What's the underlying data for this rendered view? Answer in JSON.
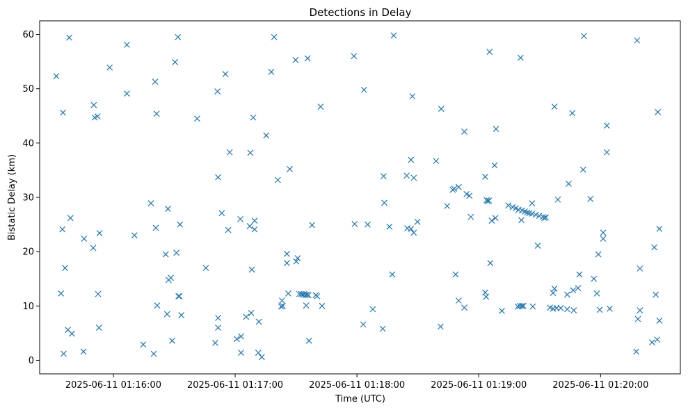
{
  "chart_data": {
    "type": "scatter",
    "title": "Detections in Delay",
    "xlabel": "Time (UTC)",
    "ylabel": "Bistatic Delay (km)",
    "x_ticks": [
      "2025-06-11 01:16:00",
      "2025-06-11 01:17:00",
      "2025-06-11 01:18:00",
      "2025-06-11 01:19:00",
      "2025-06-11 01:20:00"
    ],
    "y_ticks": [
      "0",
      "10",
      "20",
      "30",
      "40",
      "50",
      "60"
    ],
    "xlim": [
      "2025-06-11 01:15:23.7",
      "2025-06-11 01:20:39.3"
    ],
    "ylim": [
      -2.5,
      62.5
    ],
    "marker": "x",
    "color": "#1f77b4",
    "grid": false,
    "points": [
      [
        "01:15:31.9",
        52.3
      ],
      [
        "01:15:34.2",
        12.3
      ],
      [
        "01:15:34.9",
        24.1
      ],
      [
        "01:15:35.2",
        45.6
      ],
      [
        "01:15:35.5",
        1.2
      ],
      [
        "01:15:36.2",
        17.0
      ],
      [
        "01:15:37.6",
        5.6
      ],
      [
        "01:15:38.3",
        59.4
      ],
      [
        "01:15:38.9",
        26.2
      ],
      [
        "01:15:39.6",
        4.9
      ],
      [
        "01:15:45.3",
        1.6
      ],
      [
        "01:15:45.6",
        22.4
      ],
      [
        "01:15:50.1",
        20.7
      ],
      [
        "01:15:50.4",
        47.0
      ],
      [
        "01:15:50.8",
        44.7
      ],
      [
        "01:15:52.2",
        44.9
      ],
      [
        "01:15:52.5",
        12.2
      ],
      [
        "01:15:52.9",
        6.0
      ],
      [
        "01:15:53.2",
        23.4
      ],
      [
        "01:15:58.2",
        53.9
      ],
      [
        "01:16:06.7",
        58.1
      ],
      [
        "01:16:06.7",
        49.1
      ],
      [
        "01:16:10.4",
        23.0
      ],
      [
        "01:16:14.7",
        2.9
      ],
      [
        "01:16:18.5",
        28.9
      ],
      [
        "01:16:19.9",
        1.2
      ],
      [
        "01:16:20.6",
        51.3
      ],
      [
        "01:16:20.9",
        24.4
      ],
      [
        "01:16:21.3",
        45.4
      ],
      [
        "01:16:21.6",
        10.1
      ],
      [
        "01:16:25.8",
        19.5
      ],
      [
        "01:16:26.5",
        8.5
      ],
      [
        "01:16:26.9",
        27.9
      ],
      [
        "01:16:27.2",
        14.8
      ],
      [
        "01:16:28.3",
        15.2
      ],
      [
        "01:16:29.0",
        3.6
      ],
      [
        "01:16:30.4",
        54.9
      ],
      [
        "01:16:31.1",
        19.8
      ],
      [
        "01:16:31.8",
        59.5
      ],
      [
        "01:16:32.1",
        11.8
      ],
      [
        "01:16:32.5",
        11.8
      ],
      [
        "01:16:32.8",
        25.0
      ],
      [
        "01:16:33.5",
        8.3
      ],
      [
        "01:16:41.3",
        44.5
      ],
      [
        "01:16:45.6",
        17.0
      ],
      [
        "01:16:50.2",
        3.2
      ],
      [
        "01:16:51.3",
        49.5
      ],
      [
        "01:16:51.6",
        7.8
      ],
      [
        "01:16:51.6",
        6.0
      ],
      [
        "01:16:51.6",
        33.7
      ],
      [
        "01:16:53.4",
        27.1
      ],
      [
        "01:16:55.2",
        52.7
      ],
      [
        "01:16:56.6",
        24.0
      ],
      [
        "01:16:57.3",
        38.3
      ],
      [
        "01:17:00.8",
        3.9
      ],
      [
        "01:17:02.6",
        26.0
      ],
      [
        "01:17:02.9",
        4.4
      ],
      [
        "01:17:02.9",
        1.4
      ],
      [
        "01:17:05.4",
        8.0
      ],
      [
        "01:17:07.2",
        24.7
      ],
      [
        "01:17:07.5",
        38.2
      ],
      [
        "01:17:07.9",
        8.7
      ],
      [
        "01:17:08.2",
        16.7
      ],
      [
        "01:17:08.9",
        44.7
      ],
      [
        "01:17:09.6",
        25.7
      ],
      [
        "01:17:09.6",
        24.1
      ],
      [
        "01:17:11.4",
        1.4
      ],
      [
        "01:17:11.7",
        7.1
      ],
      [
        "01:17:13.1",
        0.6
      ],
      [
        "01:17:15.3",
        41.4
      ],
      [
        "01:17:17.8",
        53.1
      ],
      [
        "01:17:19.2",
        59.5
      ],
      [
        "01:17:21.0",
        33.2
      ],
      [
        "01:17:22.7",
        9.9
      ],
      [
        "01:17:23.1",
        11.0
      ],
      [
        "01:17:23.4",
        10.0
      ],
      [
        "01:17:25.5",
        17.9
      ],
      [
        "01:17:25.5",
        19.6
      ],
      [
        "01:17:26.2",
        12.3
      ],
      [
        "01:17:26.9",
        35.2
      ],
      [
        "01:17:29.8",
        55.3
      ],
      [
        "01:17:30.1",
        18.2
      ],
      [
        "01:17:30.8",
        18.8
      ],
      [
        "01:17:31.6",
        12.2
      ],
      [
        "01:17:32.6",
        12.2
      ],
      [
        "01:17:33.3",
        12.1
      ],
      [
        "01:17:34.0",
        12.2
      ],
      [
        "01:17:34.7",
        12.0
      ],
      [
        "01:17:35.0",
        10.1
      ],
      [
        "01:17:35.4",
        12.1
      ],
      [
        "01:17:35.7",
        55.6
      ],
      [
        "01:17:36.1",
        12.0
      ],
      [
        "01:17:36.4",
        3.6
      ],
      [
        "01:17:37.9",
        24.9
      ],
      [
        "01:17:39.7",
        12.0
      ],
      [
        "01:17:40.4",
        11.8
      ],
      [
        "01:17:42.1",
        46.7
      ],
      [
        "01:17:42.8",
        10.0
      ],
      [
        "01:17:58.5",
        56.0
      ],
      [
        "01:17:58.9",
        25.1
      ],
      [
        "01:18:03.1",
        6.6
      ],
      [
        "01:18:03.5",
        49.8
      ],
      [
        "01:18:05.3",
        25.0
      ],
      [
        "01:18:07.8",
        9.4
      ],
      [
        "01:18:12.7",
        5.8
      ],
      [
        "01:18:13.1",
        33.9
      ],
      [
        "01:18:13.5",
        29.0
      ],
      [
        "01:18:16.0",
        24.6
      ],
      [
        "01:18:17.4",
        15.8
      ],
      [
        "01:18:18.1",
        59.8
      ],
      [
        "01:18:24.5",
        34.0
      ],
      [
        "01:18:24.8",
        24.3
      ],
      [
        "01:18:26.6",
        36.9
      ],
      [
        "01:18:26.6",
        24.2
      ],
      [
        "01:18:27.3",
        48.6
      ],
      [
        "01:18:28.0",
        23.5
      ],
      [
        "01:18:28.0",
        33.6
      ],
      [
        "01:18:29.8",
        25.5
      ],
      [
        "01:18:39.0",
        36.7
      ],
      [
        "01:18:41.2",
        6.2
      ],
      [
        "01:18:41.5",
        46.3
      ],
      [
        "01:18:44.4",
        28.4
      ],
      [
        "01:18:47.2",
        31.4
      ],
      [
        "01:18:47.9",
        31.6
      ],
      [
        "01:18:48.6",
        15.8
      ],
      [
        "01:18:50.1",
        11.0
      ],
      [
        "01:18:50.1",
        31.9
      ],
      [
        "01:18:52.9",
        9.7
      ],
      [
        "01:18:52.9",
        42.1
      ],
      [
        "01:18:54.0",
        30.6
      ],
      [
        "01:18:55.4",
        30.3
      ],
      [
        "01:18:56.1",
        26.4
      ],
      [
        "01:19:03.2",
        33.8
      ],
      [
        "01:19:03.2",
        12.5
      ],
      [
        "01:19:03.6",
        11.7
      ],
      [
        "01:19:03.9",
        29.5
      ],
      [
        "01:19:04.3",
        29.3
      ],
      [
        "01:19:05.0",
        29.4
      ],
      [
        "01:19:05.3",
        56.8
      ],
      [
        "01:19:05.7",
        17.9
      ],
      [
        "01:19:06.4",
        25.7
      ],
      [
        "01:19:07.8",
        35.9
      ],
      [
        "01:19:08.2",
        26.2
      ],
      [
        "01:19:08.5",
        42.6
      ],
      [
        "01:19:11.4",
        9.1
      ],
      [
        "01:19:14.6",
        28.5
      ],
      [
        "01:19:16.7",
        28.2
      ],
      [
        "01:19:18.2",
        28.0
      ],
      [
        "01:19:19.2",
        9.9
      ],
      [
        "01:19:19.6",
        27.7
      ],
      [
        "01:19:20.3",
        10.0
      ],
      [
        "01:19:20.6",
        55.7
      ],
      [
        "01:19:21.0",
        25.8
      ],
      [
        "01:19:21.3",
        10.0
      ],
      [
        "01:19:21.3",
        27.6
      ],
      [
        "01:19:22.0",
        10.0
      ],
      [
        "01:19:22.7",
        27.4
      ],
      [
        "01:19:23.8",
        27.2
      ],
      [
        "01:19:24.9",
        27.1
      ],
      [
        "01:19:26.3",
        28.9
      ],
      [
        "01:19:26.3",
        27.0
      ],
      [
        "01:19:26.6",
        9.9
      ],
      [
        "01:19:28.1",
        26.8
      ],
      [
        "01:19:29.1",
        21.1
      ],
      [
        "01:19:29.8",
        26.6
      ],
      [
        "01:19:31.6",
        26.4
      ],
      [
        "01:19:32.3",
        26.2
      ],
      [
        "01:19:33.0",
        26.3
      ],
      [
        "01:19:35.1",
        9.7
      ],
      [
        "01:19:36.6",
        9.5
      ],
      [
        "01:19:36.6",
        12.4
      ],
      [
        "01:19:37.3",
        13.2
      ],
      [
        "01:19:37.3",
        46.7
      ],
      [
        "01:19:38.3",
        9.6
      ],
      [
        "01:19:39.0",
        29.6
      ],
      [
        "01:19:40.4",
        9.6
      ],
      [
        "01:19:43.6",
        9.4
      ],
      [
        "01:19:43.6",
        12.1
      ],
      [
        "01:19:44.3",
        32.5
      ],
      [
        "01:19:46.1",
        45.5
      ],
      [
        "01:19:46.5",
        12.9
      ],
      [
        "01:19:46.8",
        9.2
      ],
      [
        "01:19:48.9",
        13.3
      ],
      [
        "01:19:49.6",
        15.8
      ],
      [
        "01:19:51.4",
        35.1
      ],
      [
        "01:19:51.8",
        59.7
      ],
      [
        "01:19:55.0",
        29.7
      ],
      [
        "01:19:56.7",
        15.0
      ],
      [
        "01:19:58.2",
        12.3
      ],
      [
        "01:19:58.9",
        19.5
      ],
      [
        "01:19:59.6",
        9.3
      ],
      [
        "01:20:01.3",
        23.5
      ],
      [
        "01:20:01.3",
        22.4
      ],
      [
        "01:20:03.1",
        43.2
      ],
      [
        "01:20:03.1",
        38.3
      ],
      [
        "01:20:04.5",
        9.5
      ],
      [
        "01:20:17.6",
        1.6
      ],
      [
        "01:20:18.0",
        58.9
      ],
      [
        "01:20:18.4",
        7.6
      ],
      [
        "01:20:19.4",
        9.2
      ],
      [
        "01:20:19.4",
        16.9
      ],
      [
        "01:20:25.4",
        3.3
      ],
      [
        "01:20:26.5",
        20.8
      ],
      [
        "01:20:27.2",
        12.1
      ],
      [
        "01:20:27.9",
        3.8
      ],
      [
        "01:20:28.2",
        45.7
      ],
      [
        "01:20:29.0",
        7.3
      ],
      [
        "01:20:29.0",
        24.2
      ]
    ]
  }
}
